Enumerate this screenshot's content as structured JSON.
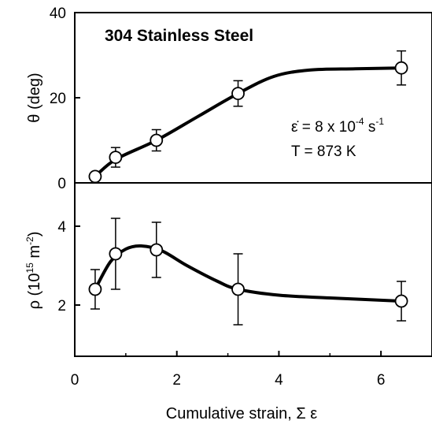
{
  "chart_data": {
    "type": "line",
    "xlabel": "Cumulative strain, Σ ε",
    "xlim": [
      0,
      7
    ],
    "xticks": [
      "0",
      "2",
      "4",
      "6"
    ],
    "panels": [
      {
        "title": "304  Stainless Steel",
        "ylabel": "θ (deg)",
        "ylim": [
          0,
          40
        ],
        "yticks": [
          "0",
          "20",
          "40"
        ],
        "annotations": {
          "strain_rate": {
            "base": "ε̇ = 8 x 10",
            "exp": "-4",
            "unit": " s",
            "unit_exp": "-1"
          },
          "temperature": "T = 873 K"
        },
        "points": [
          {
            "x": 0.4,
            "y": 1.5,
            "err": 0.8
          },
          {
            "x": 0.8,
            "y": 6.0,
            "err": 2.3
          },
          {
            "x": 1.6,
            "y": 10.0,
            "err": 2.5
          },
          {
            "x": 3.2,
            "y": 21.0,
            "err": 3.0
          },
          {
            "x": 6.4,
            "y": 27.0,
            "err": 4.0
          }
        ],
        "curve": [
          [
            0.4,
            1.5
          ],
          [
            0.8,
            5.5
          ],
          [
            1.6,
            10.0
          ],
          [
            2.4,
            15.5
          ],
          [
            3.2,
            21.0
          ],
          [
            3.9,
            25.0
          ],
          [
            4.6,
            26.5
          ],
          [
            5.5,
            26.8
          ],
          [
            6.4,
            27.0
          ]
        ]
      },
      {
        "ylabel": "ρ (10",
        "ylabel_exp": "15",
        "ylabel_unit": " m",
        "ylabel_unit_exp": "-2",
        "ylabel_close": ")",
        "ylim": [
          0.7,
          5.1
        ],
        "yticks": [
          "2",
          "4"
        ],
        "points": [
          {
            "x": 0.4,
            "y": 2.4,
            "err": 0.5
          },
          {
            "x": 0.8,
            "y": 3.3,
            "err": 0.9
          },
          {
            "x": 1.6,
            "y": 3.4,
            "err": 0.7
          },
          {
            "x": 3.2,
            "y": 2.4,
            "err": 0.9
          },
          {
            "x": 6.4,
            "y": 2.1,
            "err": 0.5
          }
        ],
        "curve": [
          [
            0.4,
            2.4
          ],
          [
            0.7,
            3.1
          ],
          [
            1.0,
            3.42
          ],
          [
            1.3,
            3.5
          ],
          [
            1.7,
            3.38
          ],
          [
            2.2,
            3.0
          ],
          [
            2.8,
            2.6
          ],
          [
            3.2,
            2.4
          ],
          [
            4.0,
            2.25
          ],
          [
            5.0,
            2.18
          ],
          [
            6.4,
            2.1
          ]
        ]
      }
    ]
  }
}
